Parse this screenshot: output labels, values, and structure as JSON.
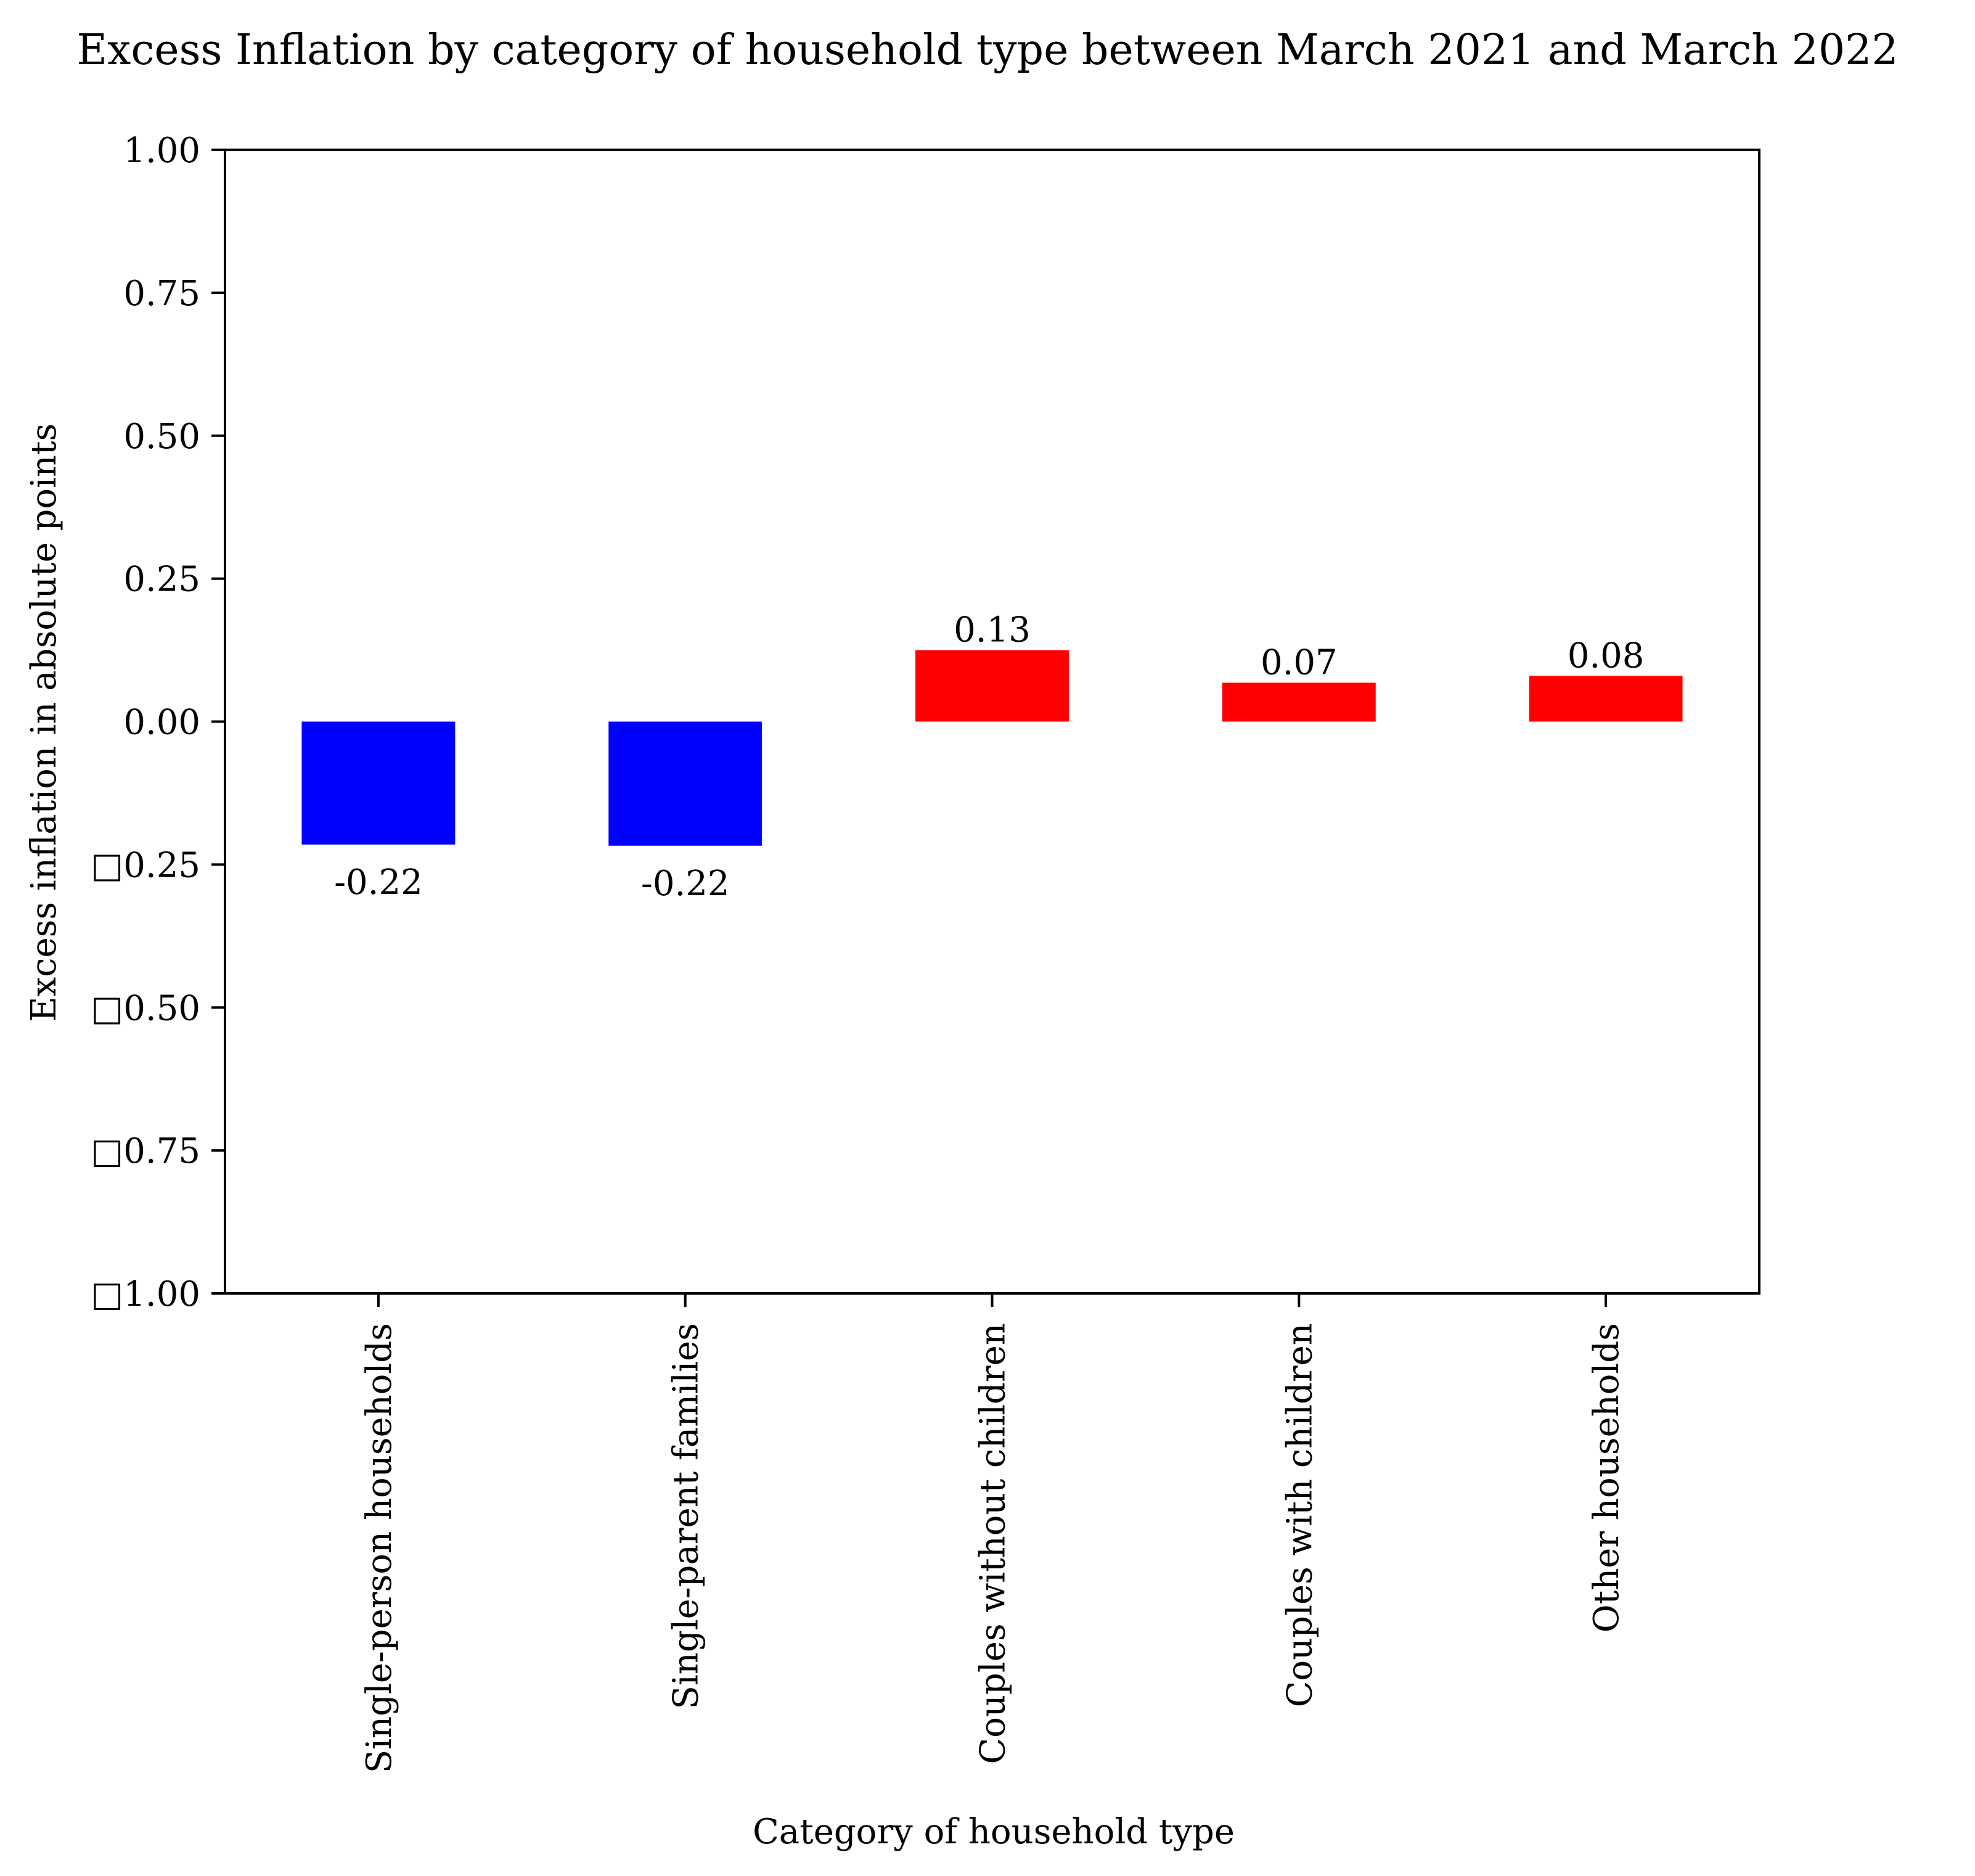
{
  "chart_data": {
    "type": "bar",
    "title": "Excess Inflation by category of household type between March 2021 and March 2022",
    "xlabel": "Category of household type",
    "ylabel": "Excess inflation in absolute points",
    "categories": [
      "Single-person households",
      "Single-parent families",
      "Couples without children",
      "Couples with children",
      "Other households"
    ],
    "values": [
      -0.215,
      -0.217,
      0.125,
      0.068,
      0.08
    ],
    "data_labels": [
      "-0.22",
      "-0.22",
      "0.13",
      "0.07",
      "0.08"
    ],
    "bar_colors": [
      "#0000ff",
      "#0000ff",
      "#ff0000",
      "#ff0000",
      "#ff0000"
    ],
    "ylim": [
      -1.0,
      1.0
    ],
    "yticks": [
      1.0,
      0.75,
      0.5,
      0.25,
      0.0,
      -0.25,
      -0.5,
      -0.75,
      -1.0
    ],
    "ytick_labels": [
      "1.00",
      "0.75",
      "0.50",
      "0.25",
      "0.00",
      "□0.25",
      "□0.50",
      "□0.75",
      "□1.00"
    ],
    "grid": false,
    "legend": "none"
  }
}
